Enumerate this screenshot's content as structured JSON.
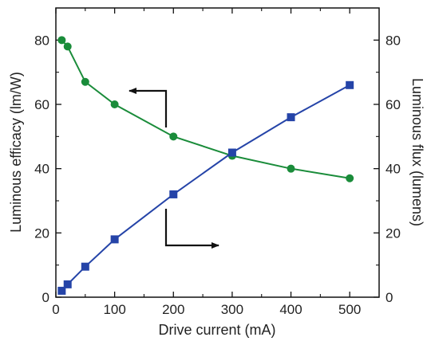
{
  "chart_data": {
    "type": "line",
    "xlabel": "Drive current (mA)",
    "ylabel_left": "Luminous efficacy (lm/W)",
    "ylabel_right": "Luminous flux (lumens)",
    "xlim": [
      0,
      550
    ],
    "ylim_left": [
      0,
      90
    ],
    "ylim_right": [
      0,
      90
    ],
    "x_ticks": [
      0,
      100,
      200,
      300,
      400,
      500
    ],
    "y_ticks_left": [
      0,
      20,
      40,
      60,
      80
    ],
    "y_ticks_right": [
      0,
      20,
      40,
      60,
      80
    ],
    "grid": false,
    "series": [
      {
        "axis": "left",
        "color": "#1a8c3a",
        "marker": "circle",
        "x": [
          10,
          20,
          50,
          100,
          200,
          300,
          400,
          500
        ],
        "y": [
          80,
          78,
          67,
          60,
          50,
          44,
          40,
          37
        ]
      },
      {
        "axis": "right",
        "color": "#2544a8",
        "marker": "square",
        "x": [
          10,
          20,
          50,
          100,
          200,
          300,
          400,
          500
        ],
        "y": [
          2,
          4,
          9.5,
          18,
          32,
          45,
          56,
          66
        ]
      }
    ],
    "annotations": [
      {
        "type": "arrow",
        "direction": "left",
        "points_to": "left-axis",
        "series": 0
      },
      {
        "type": "arrow",
        "direction": "right",
        "points_to": "right-axis",
        "series": 1
      }
    ]
  }
}
